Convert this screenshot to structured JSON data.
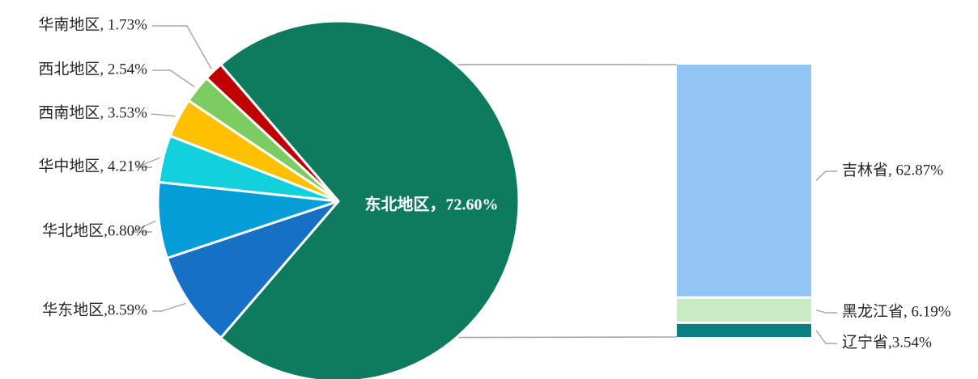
{
  "chart_data": [
    {
      "type": "pie",
      "slices": [
        {
          "label": "东北地区，72.60%",
          "name": "东北地区",
          "value": 72.6,
          "color": "#0e7a5e"
        },
        {
          "label": "华东地区,8.59%",
          "name": "华东地区",
          "value": 8.59,
          "color": "#1570c6"
        },
        {
          "label": "华北地区,6.80%",
          "name": "华北地区",
          "value": 6.8,
          "color": "#059ed8"
        },
        {
          "label": "华中地区, 4.21%",
          "name": "华中地区",
          "value": 4.21,
          "color": "#12d1dc"
        },
        {
          "label": "西南地区, 3.53%",
          "name": "西南地区",
          "value": 3.53,
          "color": "#ffc000"
        },
        {
          "label": "西北地区, 2.54%",
          "name": "西北地区",
          "value": 2.54,
          "color": "#7ccc62"
        },
        {
          "label": "华南地区, 1.73%",
          "name": "华南地区",
          "value": 1.73,
          "color": "#c00000"
        }
      ]
    },
    {
      "type": "bar",
      "stacked": true,
      "breakdown_of": "东北地区",
      "segments": [
        {
          "label": "吉林省, 62.87%",
          "name": "吉林省",
          "value": 62.87,
          "color": "#92c5f4"
        },
        {
          "label": "黑龙江省, 6.19%",
          "name": "黑龙江省",
          "value": 6.19,
          "color": "#c9ebc4"
        },
        {
          "label": "辽宁省,3.54%",
          "name": "辽宁省",
          "value": 3.54,
          "color": "#0d7f80"
        }
      ]
    }
  ]
}
